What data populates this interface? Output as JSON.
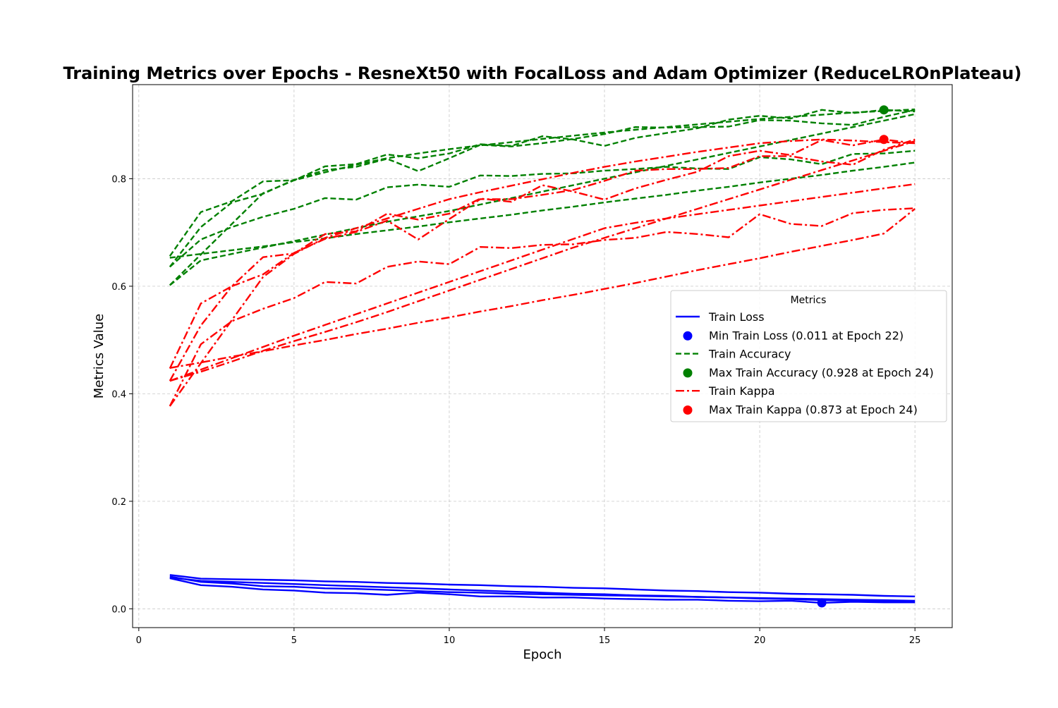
{
  "chart_data": {
    "type": "line",
    "title": "Training Metrics over Epochs - ResneXt50 with FocalLoss and Adam Optimizer (ReduceLROnPlateau)",
    "xlabel": "Epoch",
    "ylabel": "Metrics Value",
    "xlim": [
      -0.2,
      26.2
    ],
    "ylim": [
      -0.035,
      0.975
    ],
    "xticks": [
      0,
      5,
      10,
      15,
      20,
      25
    ],
    "yticks": [
      0.0,
      0.2,
      0.4,
      0.6,
      0.8
    ],
    "grid": true,
    "legend": {
      "title": "Metrics",
      "placement": "center-right",
      "entries": [
        {
          "label": "Train Loss",
          "kind": "line",
          "color": "#0000ff",
          "dash": "solid"
        },
        {
          "label": "Min Train Loss (0.011 at Epoch 22)",
          "kind": "marker",
          "color": "#0000ff"
        },
        {
          "label": "Train Accuracy",
          "kind": "line",
          "color": "#008000",
          "dash": "dashed"
        },
        {
          "label": "Max Train Accuracy (0.928 at Epoch 24)",
          "kind": "marker",
          "color": "#008000"
        },
        {
          "label": "Train Kappa",
          "kind": "line",
          "color": "#ff0000",
          "dash": "dashdot"
        },
        {
          "label": "Max Train Kappa (0.873 at Epoch 24)",
          "kind": "marker",
          "color": "#ff0000"
        }
      ]
    },
    "x": [
      1,
      2,
      3,
      4,
      5,
      6,
      7,
      8,
      9,
      10,
      11,
      12,
      13,
      14,
      15,
      16,
      17,
      18,
      19,
      20,
      21,
      22,
      23,
      24,
      25
    ],
    "series": [
      {
        "group": "Train Loss",
        "color": "#0000ff",
        "dash": "solid",
        "values": [
          0.063,
          0.056,
          0.055,
          0.054,
          0.053,
          0.051,
          0.05,
          0.048,
          0.047,
          0.045,
          0.044,
          0.042,
          0.041,
          0.039,
          0.038,
          0.036,
          0.034,
          0.033,
          0.031,
          0.03,
          0.028,
          0.027,
          0.026,
          0.024,
          0.023
        ]
      },
      {
        "group": "Train Loss",
        "color": "#0000ff",
        "dash": "solid",
        "values": [
          0.06,
          0.05,
          0.047,
          0.042,
          0.041,
          0.038,
          0.037,
          0.035,
          0.033,
          0.031,
          0.03,
          0.028,
          0.027,
          0.026,
          0.025,
          0.024,
          0.023,
          0.022,
          0.021,
          0.02,
          0.019,
          0.018,
          0.017,
          0.016,
          0.015
        ]
      },
      {
        "group": "Train Loss",
        "color": "#0000ff",
        "dash": "solid",
        "values": [
          0.057,
          0.044,
          0.041,
          0.036,
          0.034,
          0.03,
          0.029,
          0.026,
          0.03,
          0.027,
          0.023,
          0.023,
          0.021,
          0.021,
          0.019,
          0.018,
          0.017,
          0.017,
          0.015,
          0.014,
          0.015,
          0.011,
          0.013,
          0.012,
          0.012
        ]
      },
      {
        "group": "Train Loss",
        "color": "#0000ff",
        "dash": "solid",
        "values": [
          0.058,
          0.052,
          0.05,
          0.048,
          0.046,
          0.044,
          0.042,
          0.04,
          0.038,
          0.036,
          0.034,
          0.032,
          0.03,
          0.028,
          0.027,
          0.025,
          0.024,
          0.022,
          0.021,
          0.019,
          0.018,
          0.016,
          0.015,
          0.014,
          0.013
        ]
      },
      {
        "group": "Train Accuracy",
        "color": "#008000",
        "dash": "dashed",
        "values": [
          0.656,
          0.738,
          0.758,
          0.795,
          0.797,
          0.823,
          0.827,
          0.845,
          0.838,
          0.847,
          0.864,
          0.861,
          0.879,
          0.873,
          0.861,
          0.876,
          0.885,
          0.894,
          0.91,
          0.917,
          0.912,
          0.928,
          0.922,
          0.928,
          0.925
        ]
      },
      {
        "group": "Train Accuracy",
        "color": "#008000",
        "dash": "dashed",
        "values": [
          0.636,
          0.71,
          0.756,
          0.772,
          0.798,
          0.816,
          0.822,
          0.837,
          0.814,
          0.838,
          0.863,
          0.86,
          0.866,
          0.874,
          0.883,
          0.896,
          0.895,
          0.896,
          0.897,
          0.909,
          0.908,
          0.903,
          0.9,
          0.915,
          0.928
        ]
      },
      {
        "group": "Train Accuracy",
        "color": "#008000",
        "dash": "dashed",
        "values": [
          0.636,
          0.687,
          0.71,
          0.729,
          0.744,
          0.764,
          0.761,
          0.784,
          0.789,
          0.785,
          0.806,
          0.805,
          0.809,
          0.81,
          0.815,
          0.818,
          0.822,
          0.819,
          0.818,
          0.84,
          0.836,
          0.827,
          0.846,
          0.847,
          0.852
        ]
      },
      {
        "group": "Train Accuracy",
        "color": "#008000",
        "dash": "dashed",
        "values": [
          0.653,
          0.66,
          0.667,
          0.674,
          0.682,
          0.689,
          0.697,
          0.704,
          0.711,
          0.719,
          0.726,
          0.733,
          0.741,
          0.748,
          0.756,
          0.763,
          0.77,
          0.778,
          0.785,
          0.793,
          0.8,
          0.807,
          0.815,
          0.822,
          0.83
        ]
      },
      {
        "group": "Train Accuracy",
        "color": "#008000",
        "dash": "dashed",
        "values": [
          0.602,
          0.659,
          0.716,
          0.773,
          0.797,
          0.812,
          0.826,
          0.838,
          0.847,
          0.855,
          0.862,
          0.868,
          0.874,
          0.88,
          0.886,
          0.891,
          0.896,
          0.901,
          0.906,
          0.911,
          0.915,
          0.919,
          0.923,
          0.926,
          0.929
        ]
      },
      {
        "group": "Train Accuracy",
        "color": "#008000",
        "dash": "dashed",
        "values": [
          0.602,
          0.648,
          0.66,
          0.672,
          0.684,
          0.696,
          0.708,
          0.72,
          0.73,
          0.74,
          0.752,
          0.764,
          0.776,
          0.788,
          0.8,
          0.812,
          0.824,
          0.836,
          0.848,
          0.86,
          0.872,
          0.884,
          0.896,
          0.908,
          0.92
        ]
      },
      {
        "group": "Train Kappa",
        "color": "#ff0000",
        "dash": "dashdot",
        "values": [
          0.447,
          0.568,
          0.6,
          0.654,
          0.661,
          0.697,
          0.702,
          0.735,
          0.724,
          0.735,
          0.763,
          0.757,
          0.788,
          0.776,
          0.761,
          0.782,
          0.798,
          0.813,
          0.842,
          0.852,
          0.844,
          0.872,
          0.862,
          0.873,
          0.866
        ]
      },
      {
        "group": "Train Kappa",
        "color": "#ff0000",
        "dash": "dashdot",
        "values": [
          0.424,
          0.527,
          0.6,
          0.622,
          0.662,
          0.688,
          0.701,
          0.722,
          0.687,
          0.725,
          0.762,
          0.762,
          0.77,
          0.779,
          0.796,
          0.815,
          0.818,
          0.818,
          0.82,
          0.842,
          0.842,
          0.832,
          0.826,
          0.854,
          0.873
        ]
      },
      {
        "group": "Train Kappa",
        "color": "#ff0000",
        "dash": "dashdot",
        "values": [
          0.377,
          0.492,
          0.535,
          0.558,
          0.578,
          0.608,
          0.605,
          0.636,
          0.646,
          0.641,
          0.673,
          0.671,
          0.677,
          0.678,
          0.686,
          0.69,
          0.701,
          0.697,
          0.691,
          0.734,
          0.716,
          0.712,
          0.736,
          0.742,
          0.745
        ]
      },
      {
        "group": "Train Kappa",
        "color": "#ff0000",
        "dash": "dashdot",
        "values": [
          0.448,
          0.458,
          0.469,
          0.479,
          0.49,
          0.5,
          0.511,
          0.521,
          0.532,
          0.542,
          0.553,
          0.563,
          0.574,
          0.584,
          0.595,
          0.606,
          0.618,
          0.63,
          0.641,
          0.652,
          0.664,
          0.675,
          0.686,
          0.698,
          0.744
        ]
      },
      {
        "group": "Train Kappa",
        "color": "#ff0000",
        "dash": "dashdot",
        "values": [
          0.377,
          0.457,
          0.537,
          0.617,
          0.66,
          0.69,
          0.708,
          0.726,
          0.744,
          0.762,
          0.775,
          0.787,
          0.799,
          0.811,
          0.822,
          0.832,
          0.841,
          0.85,
          0.858,
          0.866,
          0.87,
          0.873,
          0.871,
          0.868,
          0.866
        ]
      },
      {
        "group": "Train Kappa",
        "color": "#ff0000",
        "dash": "dashdot",
        "values": [
          0.424,
          0.441,
          0.46,
          0.48,
          0.498,
          0.515,
          0.533,
          0.552,
          0.572,
          0.592,
          0.612,
          0.632,
          0.652,
          0.672,
          0.69,
          0.708,
          0.726,
          0.744,
          0.762,
          0.78,
          0.798,
          0.816,
          0.834,
          0.852,
          0.87
        ]
      },
      {
        "group": "Train Kappa",
        "color": "#ff0000",
        "dash": "dashdot",
        "values": [
          0.424,
          0.445,
          0.466,
          0.487,
          0.508,
          0.528,
          0.548,
          0.568,
          0.588,
          0.608,
          0.628,
          0.648,
          0.668,
          0.688,
          0.708,
          0.718,
          0.726,
          0.734,
          0.742,
          0.75,
          0.758,
          0.766,
          0.774,
          0.782,
          0.79
        ]
      }
    ],
    "markers": [
      {
        "label": "Min Train Loss (0.011 at Epoch 22)",
        "x": 22,
        "y": 0.011,
        "color": "#0000ff"
      },
      {
        "label": "Max Train Accuracy (0.928 at Epoch 24)",
        "x": 24,
        "y": 0.928,
        "color": "#008000"
      },
      {
        "label": "Max Train Kappa (0.873 at Epoch 24)",
        "x": 24,
        "y": 0.873,
        "color": "#ff0000"
      }
    ]
  }
}
